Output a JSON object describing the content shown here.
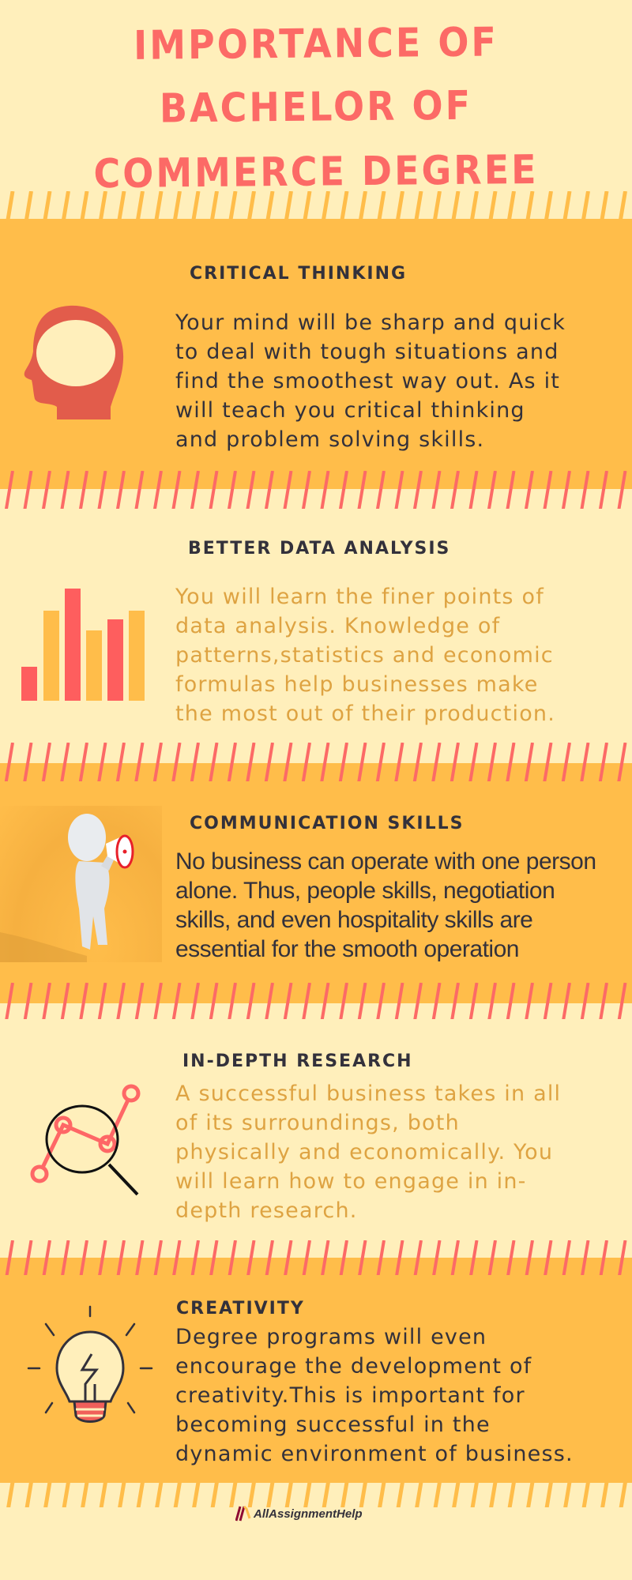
{
  "title": {
    "lines": [
      "IMPORTANCE OF",
      "BACHELOR OF",
      "COMMERCE DEGREE"
    ]
  },
  "colors": {
    "cream": "#ffefbb",
    "orange": "#ffbd4a",
    "coral": "#fc6a66",
    "dark_text": "#33313b",
    "gold_text": "#dea342"
  },
  "sections": [
    {
      "heading": "CRITICAL THINKING",
      "icon": "head-icon",
      "lines": [
        "Your mind will be sharp and quick",
        "to deal with tough situations and",
        "find the smoothest way out. As it",
        "will teach you critical thinking",
        "and problem solving skills."
      ]
    },
    {
      "heading": "BETTER DATA ANALYSIS",
      "icon": "bar-chart-icon",
      "lines": [
        " You will learn the finer points of",
        "data analysis. Knowledge of",
        "patterns,statistics and economic",
        "formulas help businesses make",
        "the most out of their production."
      ]
    },
    {
      "heading": "COMMUNICATION SKILLS",
      "icon": "megaphone-figure-icon",
      "lines": [
        "No business can operate with one person",
        "alone. Thus, people skills, negotiation",
        "skills, and even hospitality skills are",
        "essential for the smooth operation"
      ]
    },
    {
      "heading": "IN-DEPTH RESEARCH",
      "icon": "magnifier-chart-icon",
      "lines": [
        " A successful business takes in all",
        "of its surroundings, both",
        "physically and economically. You",
        "will learn how to engage in in-",
        "depth research."
      ]
    },
    {
      "heading": "CREATIVITY",
      "icon": "lightbulb-icon",
      "lines": [
        "Degree programs will even",
        "encourage the development of",
        "creativity.This is important for",
        "becoming successful in the",
        "dynamic environment of business."
      ]
    }
  ],
  "footer": {
    "brand": "AllAssignmentHelp"
  }
}
